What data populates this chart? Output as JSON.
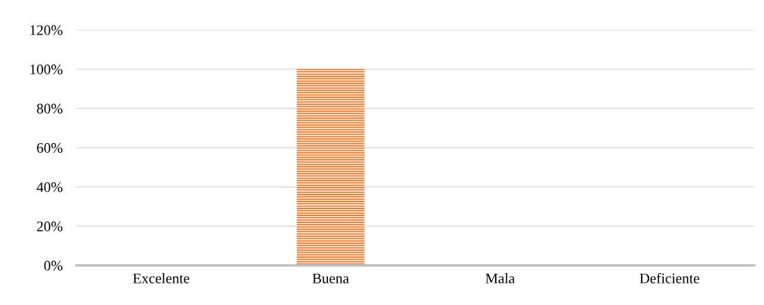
{
  "chart_data": {
    "type": "bar",
    "categories": [
      "Excelente",
      "Buena",
      "Mala",
      "Deficiente"
    ],
    "values": [
      0,
      100,
      0,
      0
    ],
    "color": "#ed7d31",
    "ylim": [
      0,
      120
    ],
    "yticks": [
      {
        "value": 0,
        "label": "0%"
      },
      {
        "value": 20,
        "label": "20%"
      },
      {
        "value": 40,
        "label": "40%"
      },
      {
        "value": 60,
        "label": "60%"
      },
      {
        "value": 80,
        "label": "80%"
      },
      {
        "value": 100,
        "label": "100%"
      },
      {
        "value": 120,
        "label": "120%"
      }
    ],
    "grid": "y",
    "legend": false
  }
}
